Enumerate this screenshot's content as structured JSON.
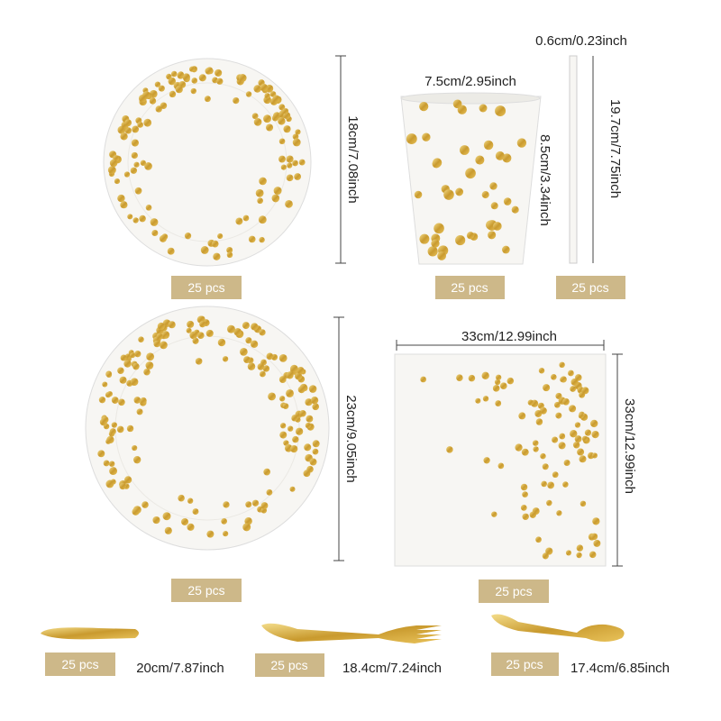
{
  "small_plate": {
    "height": "18cm/7.08inch",
    "count": "25 pcs"
  },
  "cup": {
    "width": "7.5cm/2.95inch",
    "height": "8.5cm/3.34inch",
    "count": "25 pcs"
  },
  "straw": {
    "width": "0.6cm/0.23inch",
    "height": "19.7cm/7.75inch",
    "count": "25 pcs"
  },
  "large_plate": {
    "height": "23cm/9.05inch",
    "count": "25 pcs"
  },
  "napkin": {
    "width": "33cm/12.99inch",
    "height": "33cm/12.99inch",
    "count": "25 pcs"
  },
  "knife": {
    "count": "25 pcs",
    "length": "20cm/7.87inch"
  },
  "fork": {
    "count": "25 pcs",
    "length": "18.4cm/7.24inch"
  },
  "spoon": {
    "count": "25 pcs",
    "length": "17.4cm/6.85inch"
  }
}
